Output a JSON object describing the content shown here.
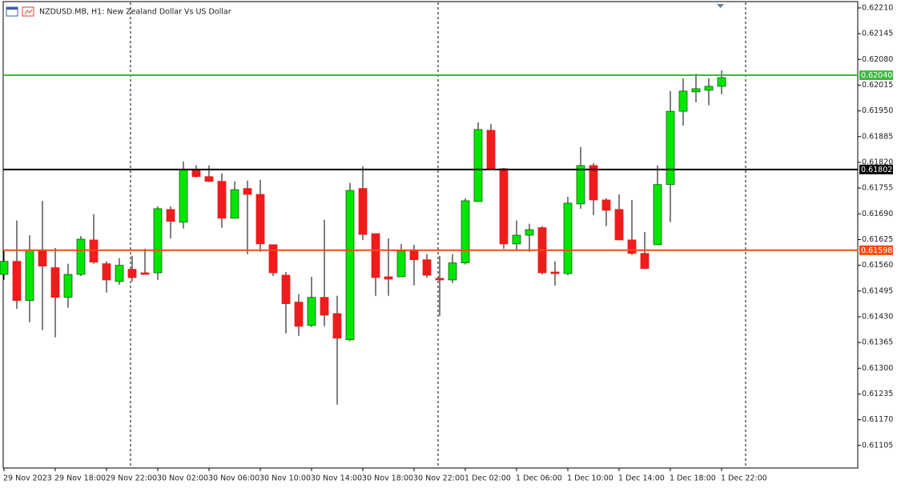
{
  "chart_data": {
    "type": "candlestick",
    "title": "NZDUSD.MB, H1:  New Zealand Dollar Vs US Dollar",
    "categories": [
      "29 Nov 2023",
      null,
      null,
      null,
      "29 Nov 18:00",
      null,
      null,
      null,
      "29 Nov 22:00",
      null,
      null,
      null,
      "30 Nov 02:00",
      null,
      null,
      null,
      "30 Nov 06:00",
      null,
      null,
      null,
      "30 Nov 10:00",
      null,
      null,
      null,
      "30 Nov 14:00",
      null,
      null,
      null,
      "30 Nov 18:00",
      null,
      null,
      null,
      "30 Nov 22:00",
      null,
      null,
      null,
      "1 Dec 02:00",
      null,
      null,
      null,
      "1 Dec 06:00",
      null,
      null,
      null,
      "1 Dec 10:00",
      null,
      null,
      null,
      "1 Dec 14:00",
      null,
      null,
      null,
      "1 Dec 18:00",
      null,
      null,
      null,
      "1 Dec 22:00"
    ],
    "open": [
      0.61537,
      0.6157,
      0.61471,
      0.61598,
      0.61554,
      0.61479,
      0.61537,
      0.61624,
      0.61564,
      0.61519,
      0.6155,
      0.61541,
      0.61541,
      0.61701,
      0.61669,
      0.61802,
      0.61784,
      0.61772,
      0.61679,
      0.61754,
      0.61739,
      0.61612,
      0.61535,
      0.61467,
      0.61408,
      0.61479,
      0.61438,
      0.61372,
      0.61754,
      0.6164,
      0.61531,
      0.61531,
      0.61598,
      0.61574,
      0.61527,
      0.61523,
      0.61566,
      0.61721,
      0.61901,
      0.61804,
      0.61614,
      0.61636,
      0.61655,
      0.61543,
      0.61539,
      0.61715,
      0.61812,
      0.61725,
      0.61701,
      0.61624,
      0.6159,
      0.61612,
      0.61764,
      0.61949,
      0.61998,
      0.62002,
      0.62012
    ],
    "high": [
      0.61598,
      0.61673,
      0.61636,
      0.61723,
      0.61604,
      0.61564,
      0.61634,
      0.61689,
      0.6157,
      0.61578,
      0.61584,
      0.61602,
      0.61709,
      0.61709,
      0.61822,
      0.61812,
      0.61812,
      0.61792,
      0.61772,
      0.61774,
      0.61776,
      0.61612,
      0.61543,
      0.61487,
      0.61531,
      0.61675,
      0.61483,
      0.61768,
      0.6181,
      0.6164,
      0.61628,
      0.61614,
      0.61612,
      0.61588,
      0.61584,
      0.61588,
      0.61729,
      0.61921,
      0.61917,
      0.61806,
      0.61673,
      0.61665,
      0.61659,
      0.6157,
      0.61733,
      0.61859,
      0.61818,
      0.61729,
      0.61739,
      0.61725,
      0.61644,
      0.61812,
      0.62,
      0.62032,
      0.62044,
      0.62032,
      0.62052
    ],
    "low": [
      0.61523,
      0.6145,
      0.61416,
      0.61396,
      0.61378,
      0.61453,
      0.61533,
      0.61564,
      0.61491,
      0.61511,
      0.61519,
      0.61537,
      0.61523,
      0.61628,
      0.61653,
      0.61782,
      0.6177,
      0.61655,
      0.61679,
      0.61588,
      0.61594,
      0.61533,
      0.61388,
      0.61382,
      0.61404,
      0.61406,
      0.61208,
      0.61368,
      0.61624,
      0.61483,
      0.61483,
      0.61531,
      0.61509,
      0.61529,
      0.61432,
      0.61515,
      0.61562,
      0.61721,
      0.61804,
      0.61602,
      0.616,
      0.61594,
      0.61537,
      0.61509,
      0.61535,
      0.61703,
      0.61687,
      0.61659,
      0.61624,
      0.61586,
      0.6155,
      0.61612,
      0.61669,
      0.61913,
      0.61972,
      0.61964,
      0.61992
    ],
    "close": [
      0.6157,
      0.61471,
      0.61598,
      0.61558,
      0.61479,
      0.61537,
      0.61626,
      0.61568,
      0.61523,
      0.6156,
      0.61529,
      0.61537,
      0.61703,
      0.61671,
      0.61802,
      0.61784,
      0.61772,
      0.61679,
      0.61751,
      0.61739,
      0.61614,
      0.61541,
      0.61463,
      0.61406,
      0.61479,
      0.61434,
      0.61376,
      0.61749,
      0.61638,
      0.61529,
      0.61525,
      0.61596,
      0.61574,
      0.61535,
      0.61523,
      0.61566,
      0.61723,
      0.61903,
      0.61804,
      0.61614,
      0.61636,
      0.6165,
      0.61541,
      0.61539,
      0.61717,
      0.61812,
      0.61725,
      0.61699,
      0.61624,
      0.6159,
      0.61552,
      0.61764,
      0.61949,
      0.62,
      0.62006,
      0.62012,
      0.62034
    ],
    "up_color": "#00e600",
    "down_color": "#ee1c1c",
    "ylim": [
      0.61048,
      0.62226
    ],
    "yticks": [
      {
        "value": 0.6221,
        "label": "0.62210"
      },
      0.62145,
      {
        "value": 0.6208,
        "label": "0.62080"
      },
      0.62015,
      {
        "value": 0.6195,
        "label": "0.61950"
      },
      0.61885,
      {
        "value": 0.6182,
        "label": "0.61820"
      },
      0.61755,
      {
        "value": 0.6169,
        "label": "0.61690"
      },
      0.61625,
      {
        "value": 0.6156,
        "label": "0.61560"
      },
      0.61495,
      {
        "value": 0.6143,
        "label": "0.61430"
      },
      0.61365,
      {
        "value": 0.613,
        "label": "0.61300"
      },
      0.61235,
      {
        "value": 0.6117,
        "label": "0.61170"
      },
      0.61105
    ],
    "hlines": [
      {
        "value": 0.6204,
        "label": "0.62040",
        "color": "#3cb93c"
      },
      {
        "value": 0.61802,
        "label": "0.61802",
        "color": "#000000"
      },
      {
        "value": 0.61598,
        "label": "0.61598",
        "color": "#ff4a0a"
      }
    ],
    "grid": false
  }
}
